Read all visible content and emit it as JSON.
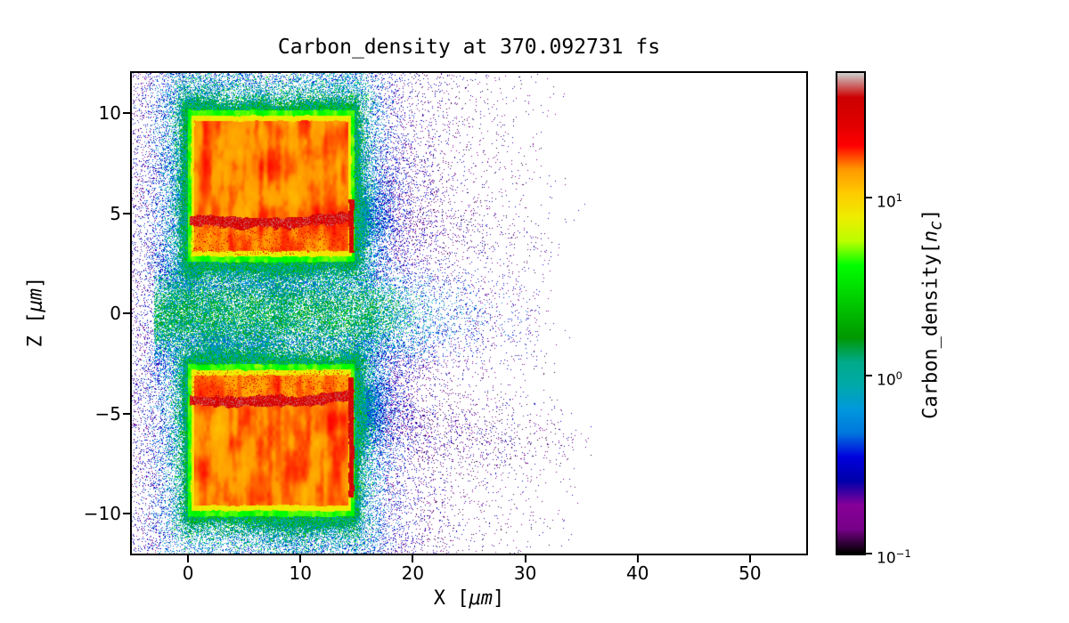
{
  "figure": {
    "background_color": "#ffffff"
  },
  "chart_data": {
    "type": "heatmap",
    "title": "Carbon_density at 370.092731 fs",
    "time_fs": 370.092731,
    "xlabel": "X [μm]",
    "xlabel_parts": {
      "pre": "X [",
      "math": "μm",
      "post": "]"
    },
    "ylabel": "Z [μm]",
    "ylabel_parts": {
      "pre": "Z [",
      "math": "μm",
      "post": "]"
    },
    "xlim": [
      -5,
      55
    ],
    "ylim": [
      -12,
      12
    ],
    "xticks": [
      0,
      10,
      20,
      30,
      40,
      50
    ],
    "yticks": [
      -10,
      -5,
      0,
      5,
      10
    ],
    "color_scale": "log",
    "vmin": 0.1,
    "vmax": 50,
    "colormap": "nipy_spectral",
    "colormap_stops": [
      [
        0.0,
        0.0,
        0.0,
        0.0
      ],
      [
        0.05,
        0.4667,
        0.0,
        0.5333
      ],
      [
        0.1,
        0.5333,
        0.0,
        0.6
      ],
      [
        0.15,
        0.0,
        0.0,
        0.6667
      ],
      [
        0.2,
        0.0,
        0.0,
        0.8667
      ],
      [
        0.25,
        0.0,
        0.4667,
        0.8667
      ],
      [
        0.3,
        0.0,
        0.6,
        0.8667
      ],
      [
        0.35,
        0.0,
        0.6667,
        0.6667
      ],
      [
        0.4,
        0.0,
        0.6667,
        0.5333
      ],
      [
        0.45,
        0.0,
        0.6,
        0.0
      ],
      [
        0.5,
        0.0,
        0.7333,
        0.0
      ],
      [
        0.55,
        0.0,
        0.8667,
        0.0
      ],
      [
        0.6,
        0.0,
        1.0,
        0.0
      ],
      [
        0.65,
        0.7333,
        1.0,
        0.0
      ],
      [
        0.7,
        0.9333,
        0.9333,
        0.0
      ],
      [
        0.75,
        1.0,
        0.8,
        0.0
      ],
      [
        0.8,
        1.0,
        0.6,
        0.0
      ],
      [
        0.85,
        1.0,
        0.0,
        0.0
      ],
      [
        0.9,
        0.8667,
        0.0,
        0.0
      ],
      [
        0.95,
        0.8,
        0.0,
        0.0
      ],
      [
        1.0,
        0.8,
        0.8,
        0.8
      ]
    ],
    "colorbar": {
      "label": "Carbon_density[nc]",
      "label_parts": {
        "pre": "Carbon_density[",
        "math": "n",
        "sub": "c",
        "post": "]"
      },
      "ticks": [
        {
          "value": 10,
          "base": "10",
          "exp": "1"
        },
        {
          "value": 1,
          "base": "10",
          "exp": "0"
        },
        {
          "value": 0.1,
          "base": "10",
          "exp": "−1"
        }
      ]
    },
    "features": {
      "description": "Two dense rectangular carbon slab targets with hot red compression front lines near |Z|≈4.5 μm and hot right edges, green rims, surrounded by expanding low-density blue/purple plasma scatter and a central plasma jet near Z=0 extending to X≈32 μm",
      "slabs": [
        {
          "x_range": [
            0,
            14.8
          ],
          "z_range": [
            2.55,
            10.15
          ],
          "interior_density_nc": 15,
          "front_line_z": 4.55,
          "front_line_density_nc": 30,
          "right_edge_hot_z_range": [
            3.0,
            5.7
          ]
        },
        {
          "x_range": [
            0,
            14.8
          ],
          "z_range": [
            -10.15,
            -2.55
          ],
          "interior_density_nc": 15,
          "front_line_z": -4.35,
          "front_line_density_nc": 30,
          "right_edge_hot_z_range": [
            -9.2,
            -3.2
          ]
        }
      ],
      "rim_density_nc": 4,
      "jet": {
        "z_center": 0,
        "half_width_um": 1.9,
        "x_max_um": 31,
        "density_nc": 0.8
      },
      "scatter": {
        "x_max_um": 34,
        "density_range_nc": [
          0.1,
          0.6
        ]
      }
    }
  }
}
